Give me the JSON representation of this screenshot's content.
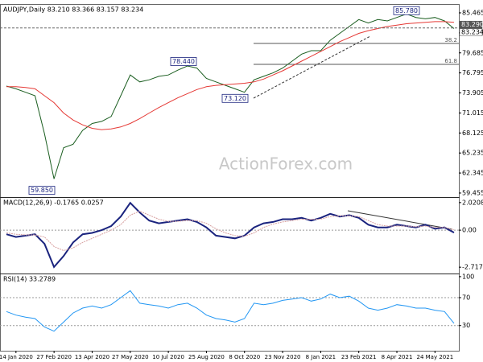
{
  "chart_data": [
    {
      "type": "line",
      "title": "AUDJPY,Daily 83.210 83.366 83.157 83.234",
      "watermark": "ActionForex.com",
      "categories": [
        null,
        "14 Jan 2020",
        null,
        null,
        null,
        "27 Feb 2020",
        null,
        null,
        null,
        "13 Apr 2020",
        null,
        null,
        null,
        "27 May 2020",
        null,
        null,
        null,
        "10 Jul 2020",
        null,
        null,
        null,
        "25 Aug 2020",
        null,
        null,
        null,
        "8 Oct 2020",
        null,
        null,
        null,
        "23 Nov 2020",
        null,
        null,
        null,
        "8 Jan 2021",
        null,
        null,
        null,
        "23 Feb 2021",
        null,
        null,
        null,
        "8 Apr 2021",
        null,
        null,
        null,
        "24 May 2021",
        null,
        null
      ],
      "series": [
        {
          "color": "#1b5e20",
          "values": [
            74.9,
            74.5,
            74.0,
            73.5,
            68.0,
            61.5,
            66.0,
            66.5,
            68.5,
            69.5,
            69.8,
            70.5,
            73.5,
            76.5,
            75.5,
            75.8,
            76.3,
            76.5,
            77.2,
            77.8,
            77.5,
            76.0,
            75.5,
            75.0,
            74.5,
            74.0,
            75.8,
            76.3,
            76.8,
            77.5,
            78.5,
            79.5,
            80.0,
            80.0,
            81.5,
            82.5,
            83.5,
            84.5,
            84.0,
            84.5,
            84.3,
            84.8,
            85.3,
            84.8,
            84.6,
            84.8,
            84.3,
            83.2
          ]
        },
        {
          "color": "#e53935",
          "values": [
            74.8,
            74.8,
            74.7,
            74.5,
            73.5,
            72.5,
            71.0,
            70.0,
            69.3,
            68.8,
            68.6,
            68.7,
            69.0,
            69.5,
            70.2,
            71.0,
            71.8,
            72.5,
            73.2,
            73.8,
            74.4,
            74.8,
            75.0,
            75.1,
            75.2,
            75.3,
            75.5,
            75.9,
            76.5,
            77.1,
            77.8,
            78.5,
            79.2,
            79.9,
            80.6,
            81.3,
            81.9,
            82.5,
            82.9,
            83.2,
            83.5,
            83.7,
            83.9,
            84.0,
            84.1,
            84.2,
            84.2,
            84.1
          ]
        }
      ],
      "ylim": [
        58.87,
        86.74
      ],
      "yticks": [
        85.465,
        82.575,
        79.685,
        76.795,
        73.905,
        71.015,
        68.125,
        65.235,
        62.345,
        59.455
      ],
      "annotations": [
        {
          "value": 85.78,
          "label": "85.780"
        },
        {
          "value": 78.44,
          "label": "78.440"
        },
        {
          "value": 73.12,
          "label": "73.120"
        },
        {
          "value": 59.85,
          "label": "59.850"
        }
      ],
      "fib_levels": [
        {
          "ratio": 38.2,
          "price": 81.05
        },
        {
          "ratio": 61.8,
          "price": 78.03
        }
      ],
      "last_prices": [
        {
          "value": 83.29,
          "label": "83.290"
        },
        {
          "value": 83.234,
          "label": "83.234"
        }
      ]
    },
    {
      "type": "line",
      "title": "MACD(12,26,9) -0.1765 0.0257",
      "series": [
        {
          "color": "#1a237e",
          "values": [
            -0.3,
            -0.5,
            -0.4,
            -0.3,
            -1.0,
            -2.7,
            -1.9,
            -0.9,
            -0.3,
            -0.2,
            0.0,
            0.3,
            1.0,
            2.0,
            1.3,
            0.7,
            0.5,
            0.6,
            0.7,
            0.8,
            0.6,
            0.2,
            -0.4,
            -0.5,
            -0.6,
            -0.4,
            0.2,
            0.5,
            0.6,
            0.8,
            0.8,
            0.9,
            0.7,
            0.9,
            1.2,
            1.0,
            1.1,
            0.9,
            0.4,
            0.2,
            0.2,
            0.4,
            0.3,
            0.2,
            0.4,
            0.1,
            0.2,
            -0.1765
          ]
        },
        {
          "color": "#d7a0a0",
          "values": [
            -0.2,
            -0.3,
            -0.35,
            -0.35,
            -0.5,
            -1.2,
            -1.5,
            -1.3,
            -0.9,
            -0.6,
            -0.3,
            0.0,
            0.4,
            1.1,
            1.4,
            1.1,
            0.8,
            0.65,
            0.65,
            0.7,
            0.7,
            0.5,
            0.1,
            -0.2,
            -0.4,
            -0.45,
            -0.2,
            0.2,
            0.45,
            0.6,
            0.7,
            0.8,
            0.8,
            0.8,
            1.0,
            1.05,
            1.05,
            1.0,
            0.7,
            0.4,
            0.3,
            0.3,
            0.3,
            0.25,
            0.3,
            0.2,
            0.2,
            0.0257
          ]
        }
      ],
      "ylim": [
        -3.18,
        2.425
      ],
      "yticks": [
        2.0208,
        {
          "value": 0,
          "label": "0.00"
        },
        -2.717
      ],
      "reference_lines": [
        0
      ]
    },
    {
      "type": "line",
      "title": "RSI(14) 33.2789",
      "series": [
        {
          "color": "#2196f3",
          "values": [
            50,
            45,
            42,
            40,
            28,
            22,
            35,
            48,
            55,
            58,
            55,
            60,
            70,
            80,
            62,
            60,
            58,
            55,
            60,
            62,
            55,
            45,
            40,
            38,
            35,
            40,
            62,
            60,
            62,
            66,
            68,
            70,
            65,
            68,
            75,
            70,
            72,
            65,
            55,
            52,
            55,
            60,
            58,
            55,
            55,
            52,
            50,
            33.2789
          ]
        }
      ],
      "ylim": [
        -6,
        104.5
      ],
      "yticks": [
        100,
        70,
        30
      ],
      "reference_lines": [
        70,
        30
      ]
    }
  ]
}
